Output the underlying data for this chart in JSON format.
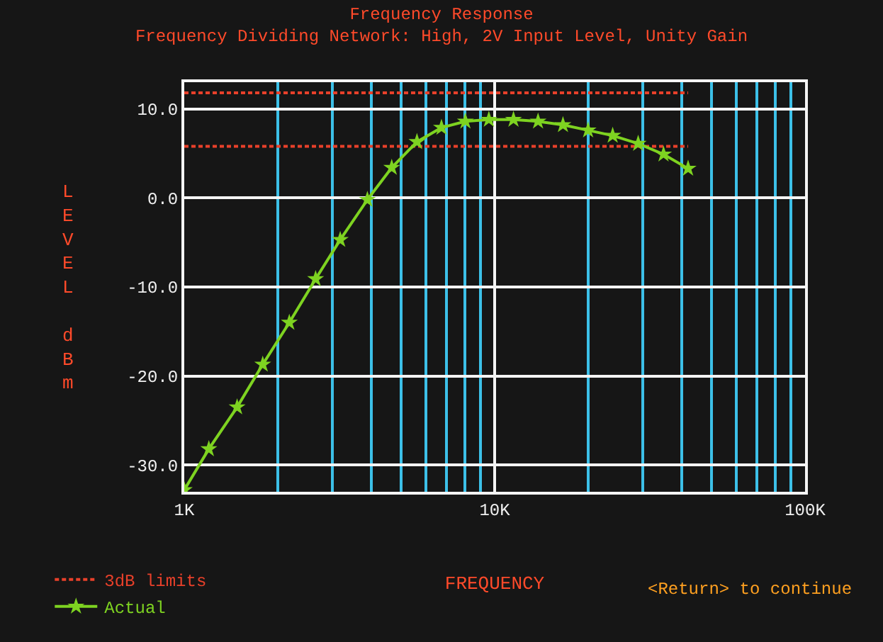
{
  "chart_data": {
    "type": "line",
    "title": "Frequency Response",
    "subtitle": "Frequency Dividing Network: High, 2V Input Level, Unity Gain",
    "xlabel": "FREQUENCY",
    "ylabel": "LEVEL dBm",
    "log": "x",
    "xlim": [
      1,
      100
    ],
    "xticks": [
      {
        "value": 1,
        "label": "1K"
      },
      {
        "value": 2,
        "label": null
      },
      {
        "value": 3,
        "label": null
      },
      {
        "value": 4,
        "label": null
      },
      {
        "value": 5,
        "label": null
      },
      {
        "value": 6,
        "label": null
      },
      {
        "value": 7,
        "label": null
      },
      {
        "value": 8,
        "label": null
      },
      {
        "value": 9,
        "label": null
      },
      {
        "value": 10,
        "label": "10K"
      },
      {
        "value": 20,
        "label": null
      },
      {
        "value": 30,
        "label": null
      },
      {
        "value": 40,
        "label": null
      },
      {
        "value": 50,
        "label": null
      },
      {
        "value": 60,
        "label": null
      },
      {
        "value": 70,
        "label": null
      },
      {
        "value": 80,
        "label": null
      },
      {
        "value": 90,
        "label": null
      },
      {
        "value": 100,
        "label": "100K"
      }
    ],
    "ylim": [
      -33,
      13
    ],
    "yticks": [
      {
        "value": -30,
        "label": "-30.0"
      },
      {
        "value": -20,
        "label": "-20.0"
      },
      {
        "value": -10,
        "label": "-10.0"
      },
      {
        "value": 0,
        "label": "0.0"
      },
      {
        "value": 10,
        "label": "10.0"
      }
    ],
    "grid": true,
    "legend": "bottom left",
    "series": [
      {
        "name": "3dB limits",
        "color": "#e8402a",
        "line_style": "dashed",
        "marker": "none",
        "x": [
          1,
          42
        ],
        "values": [
          11.8,
          11.8
        ]
      },
      {
        "color": "#e8402a",
        "line_style": "dashed",
        "marker": "none",
        "x": [
          1,
          42
        ],
        "values": [
          5.8,
          5.8
        ]
      },
      {
        "name": "Actual",
        "color": "#7ed321",
        "line_style": "solid",
        "marker": "star",
        "x": [
          1.0,
          1.2,
          1.48,
          1.79,
          2.18,
          2.65,
          3.18,
          3.89,
          4.66,
          5.62,
          6.74,
          8.05,
          9.58,
          11.5,
          13.8,
          16.6,
          20,
          24,
          29,
          35,
          42
        ],
        "values": [
          -32.8,
          -28.2,
          -23.5,
          -18.7,
          -14.0,
          -9.1,
          -4.7,
          -0.2,
          3.4,
          6.3,
          7.9,
          8.6,
          8.8,
          8.8,
          8.6,
          8.2,
          7.6,
          7.0,
          6.1,
          4.9,
          3.3
        ]
      }
    ],
    "annotations": [
      "<Return> to continue"
    ]
  }
}
